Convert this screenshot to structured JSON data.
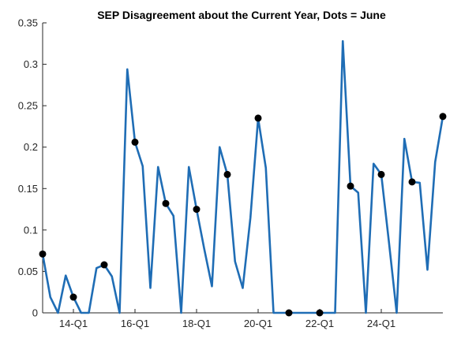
{
  "chart_data": {
    "type": "line",
    "title": "SEP Disagreement about the Current Year, Dots = June",
    "xlabel": "",
    "ylabel": "",
    "grid": false,
    "legend": "none",
    "ylim": [
      0,
      0.35
    ],
    "y_ticks": [
      "0",
      "0.05",
      "0.1",
      "0.15",
      "0.2",
      "0.25",
      "0.3",
      "0.35"
    ],
    "x_ticks": [
      "14-Q1",
      "16-Q1",
      "18-Q1",
      "20-Q1",
      "22-Q1",
      "24-Q1"
    ],
    "x_tick_index": [
      4,
      12,
      20,
      28,
      36,
      44
    ],
    "line_color": "#1f6db5",
    "dot_color": "#000000",
    "series": [
      {
        "values": [
          0.071,
          0.019,
          0.0,
          0.045,
          0.019,
          0.0,
          0.0,
          0.054,
          0.058,
          0.044,
          0.0,
          0.294,
          0.206,
          0.177,
          0.03,
          0.176,
          0.132,
          0.117,
          0.0,
          0.176,
          0.125,
          0.077,
          0.032,
          0.2,
          0.167,
          0.062,
          0.03,
          0.115,
          0.235,
          0.175,
          0.0,
          0.0,
          0.0,
          0.0,
          0.0,
          0.0,
          0.0,
          0.0,
          0.0,
          0.328,
          0.153,
          0.145,
          0.0,
          0.18,
          0.167,
          0.085,
          0.0,
          0.21,
          0.158,
          0.157,
          0.052,
          0.182,
          0.237
        ]
      }
    ],
    "june_dots": [
      {
        "index": 0,
        "value": 0.071
      },
      {
        "index": 4,
        "value": 0.019
      },
      {
        "index": 8,
        "value": 0.058
      },
      {
        "index": 12,
        "value": 0.206
      },
      {
        "index": 16,
        "value": 0.132
      },
      {
        "index": 20,
        "value": 0.125
      },
      {
        "index": 24,
        "value": 0.167
      },
      {
        "index": 28,
        "value": 0.235
      },
      {
        "index": 32,
        "value": 0.0
      },
      {
        "index": 36,
        "value": 0.0
      },
      {
        "index": 40,
        "value": 0.153
      },
      {
        "index": 44,
        "value": 0.167
      },
      {
        "index": 48,
        "value": 0.158
      },
      {
        "index": 52,
        "value": 0.237
      }
    ]
  }
}
